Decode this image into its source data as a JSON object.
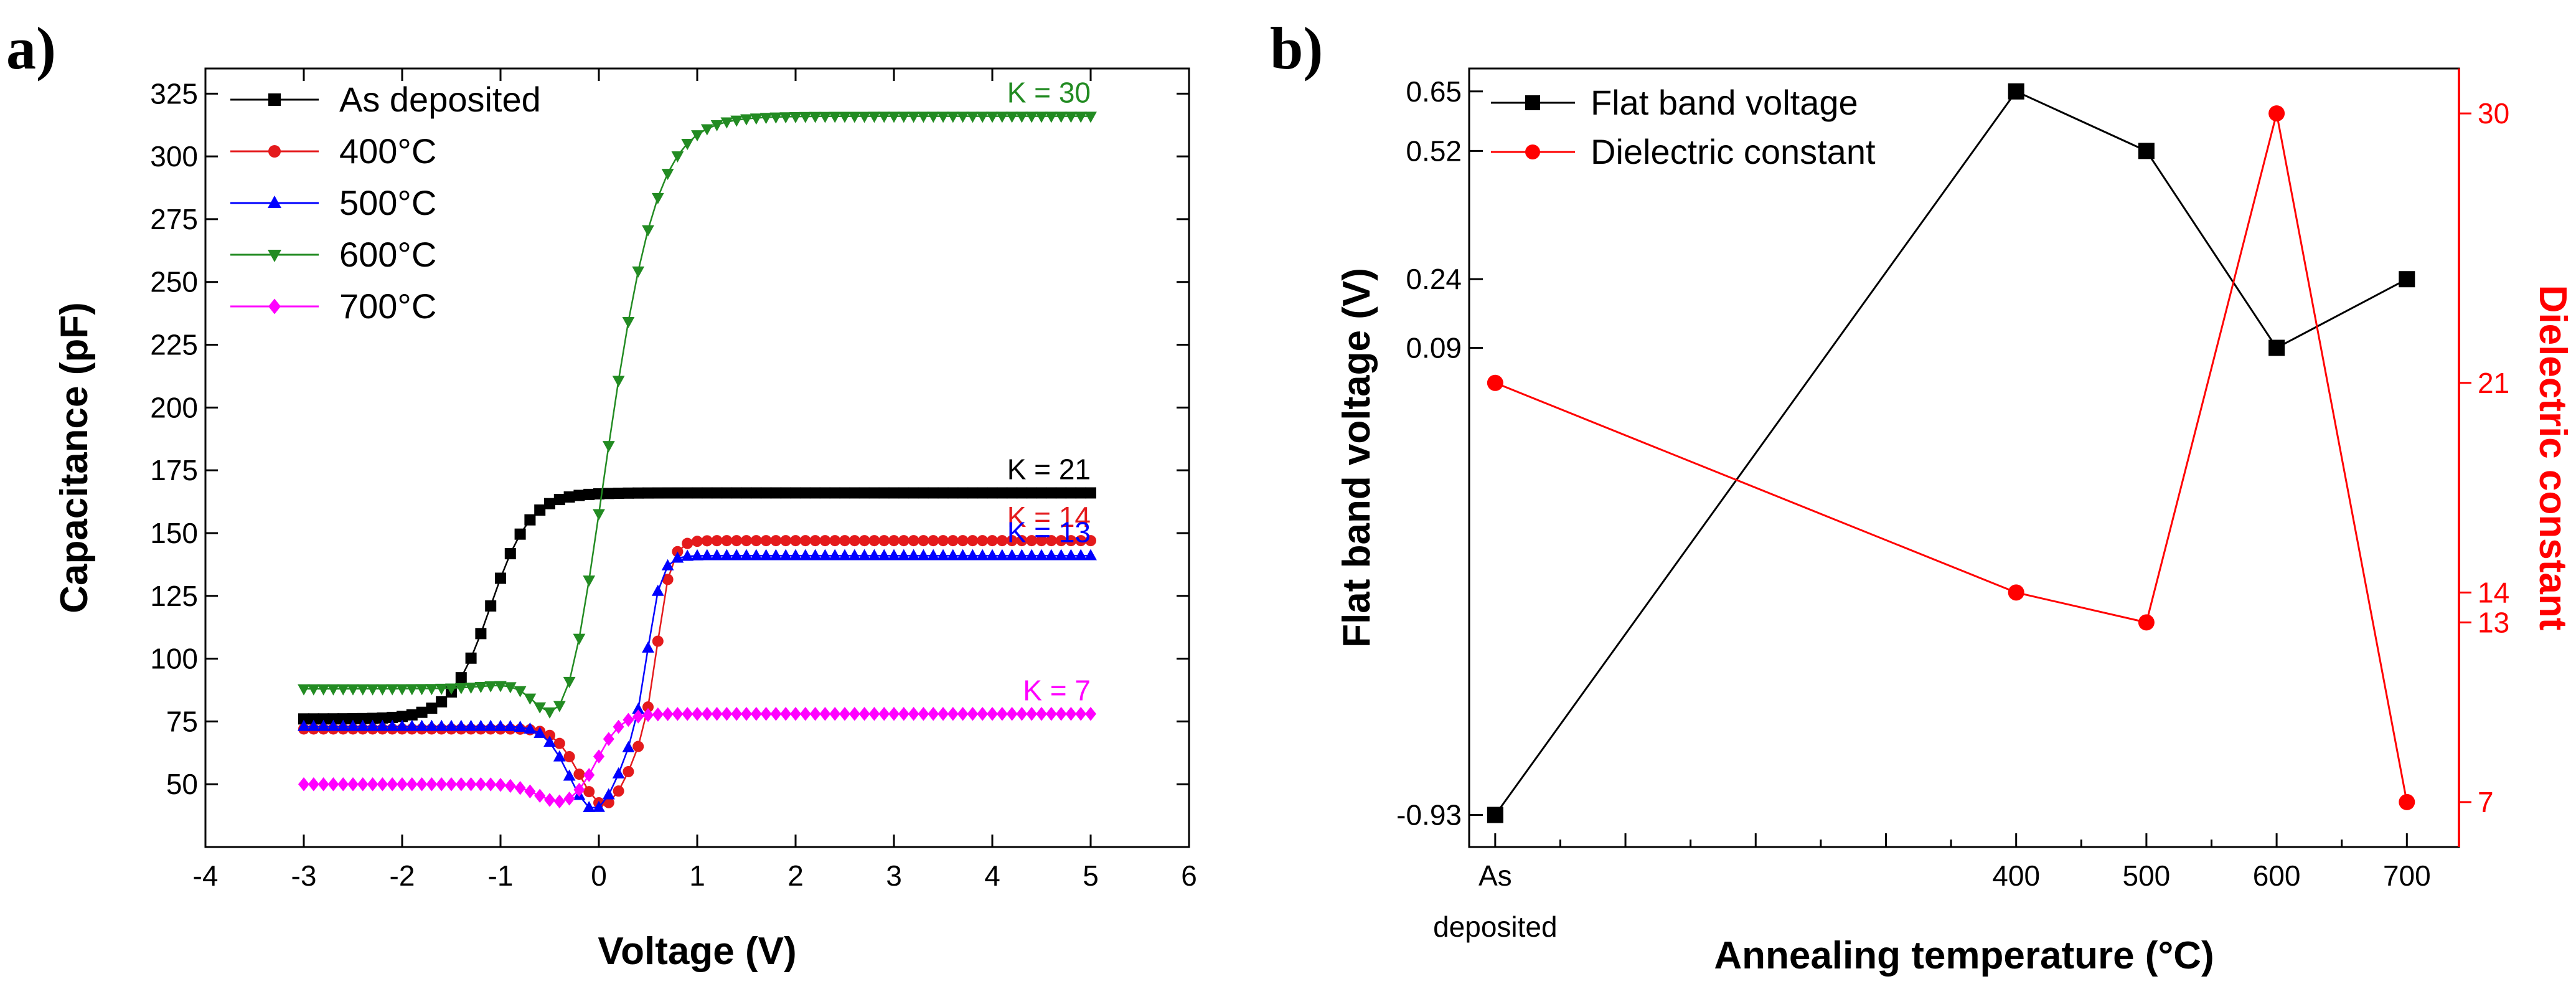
{
  "panels": {
    "a": {
      "label": "a)"
    },
    "b": {
      "label": "b)"
    }
  },
  "chart_data": [
    {
      "type": "line",
      "panel": "a)",
      "xlabel": "Voltage (V)",
      "ylabel": "Capacitance (pF)",
      "xlim": [
        -4,
        6
      ],
      "ylim": [
        25,
        335
      ],
      "xticks": [
        -4,
        -3,
        -2,
        -1,
        0,
        1,
        2,
        3,
        4,
        5,
        6
      ],
      "yticks": [
        50,
        75,
        100,
        125,
        150,
        175,
        200,
        225,
        250,
        275,
        300,
        325
      ],
      "legend_position": "top-left",
      "series": [
        {
          "name": "As deposited",
          "color": "#000000",
          "marker": "square",
          "line_style": "solid",
          "cmin": 76,
          "cmax": 166,
          "v_mid": -1.1,
          "v_width": 0.2,
          "dip": 0,
          "dip_v": 0,
          "k_label": "K = 21"
        },
        {
          "name": "400°C",
          "color": "#e41a1c",
          "marker": "circle",
          "line_style": "solid",
          "cmin": 72,
          "cmax": 147,
          "v_mid": 0.6,
          "v_width": 0.07,
          "dip": 30,
          "dip_v": 0.05,
          "k_label": "K = 14"
        },
        {
          "name": "500°C",
          "color": "#0000ff",
          "marker": "triangle-up",
          "line_style": "solid",
          "cmin": 73,
          "cmax": 141,
          "v_mid": 0.5,
          "v_width": 0.07,
          "dip": 33,
          "dip_v": -0.05,
          "k_label": "K = 13"
        },
        {
          "name": "600°C",
          "color": "#228b22",
          "marker": "triangle-down",
          "line_style": "solid",
          "cmin": 88,
          "cmax": 316,
          "v_mid": 0.15,
          "v_width": 0.25,
          "dip": 30,
          "dip_v": -0.35,
          "k_label": "K = 30"
        },
        {
          "name": "700°C",
          "color": "#ff00ff",
          "marker": "diamond",
          "line_style": "solid",
          "cmin": 50,
          "cmax": 78,
          "v_mid": 0.0,
          "v_width": 0.12,
          "dip": 8,
          "dip_v": -0.35,
          "k_label": "K = 7"
        }
      ]
    },
    {
      "type": "line",
      "panel": "b)",
      "xlabel": "Annealing temperature (°C)",
      "ylabel_left": "Flat band voltage (V)",
      "ylabel_right": "Dielectric constant",
      "categories": [
        "As deposited",
        "400",
        "500",
        "600",
        "700"
      ],
      "x_positions": [
        0,
        400,
        500,
        600,
        700
      ],
      "xlim": [
        -20,
        740
      ],
      "x_category_labels": [
        {
          "x": 0,
          "lines": [
            "As",
            "deposited"
          ]
        },
        {
          "x": 400,
          "lines": [
            "400"
          ]
        },
        {
          "x": 500,
          "lines": [
            "500"
          ]
        },
        {
          "x": 600,
          "lines": [
            "600"
          ]
        },
        {
          "x": 700,
          "lines": [
            "700"
          ]
        }
      ],
      "ylim_left": [
        -1.0,
        0.7
      ],
      "yticks_left": [
        0.65,
        0.52,
        0.24,
        0.09,
        -0.93
      ],
      "ylim_right": [
        5.5,
        31.5
      ],
      "yticks_right": [
        30,
        21,
        14,
        13,
        7
      ],
      "legend_position": "top-left",
      "series": [
        {
          "name": "Flat band voltage",
          "axis": "left",
          "color": "#000000",
          "marker": "square",
          "values": [
            -0.93,
            0.65,
            0.52,
            0.09,
            0.24
          ]
        },
        {
          "name": "Dielectric constant",
          "axis": "right",
          "color": "#ff0000",
          "marker": "circle",
          "values": [
            21,
            14,
            13,
            30,
            7
          ]
        }
      ]
    }
  ]
}
